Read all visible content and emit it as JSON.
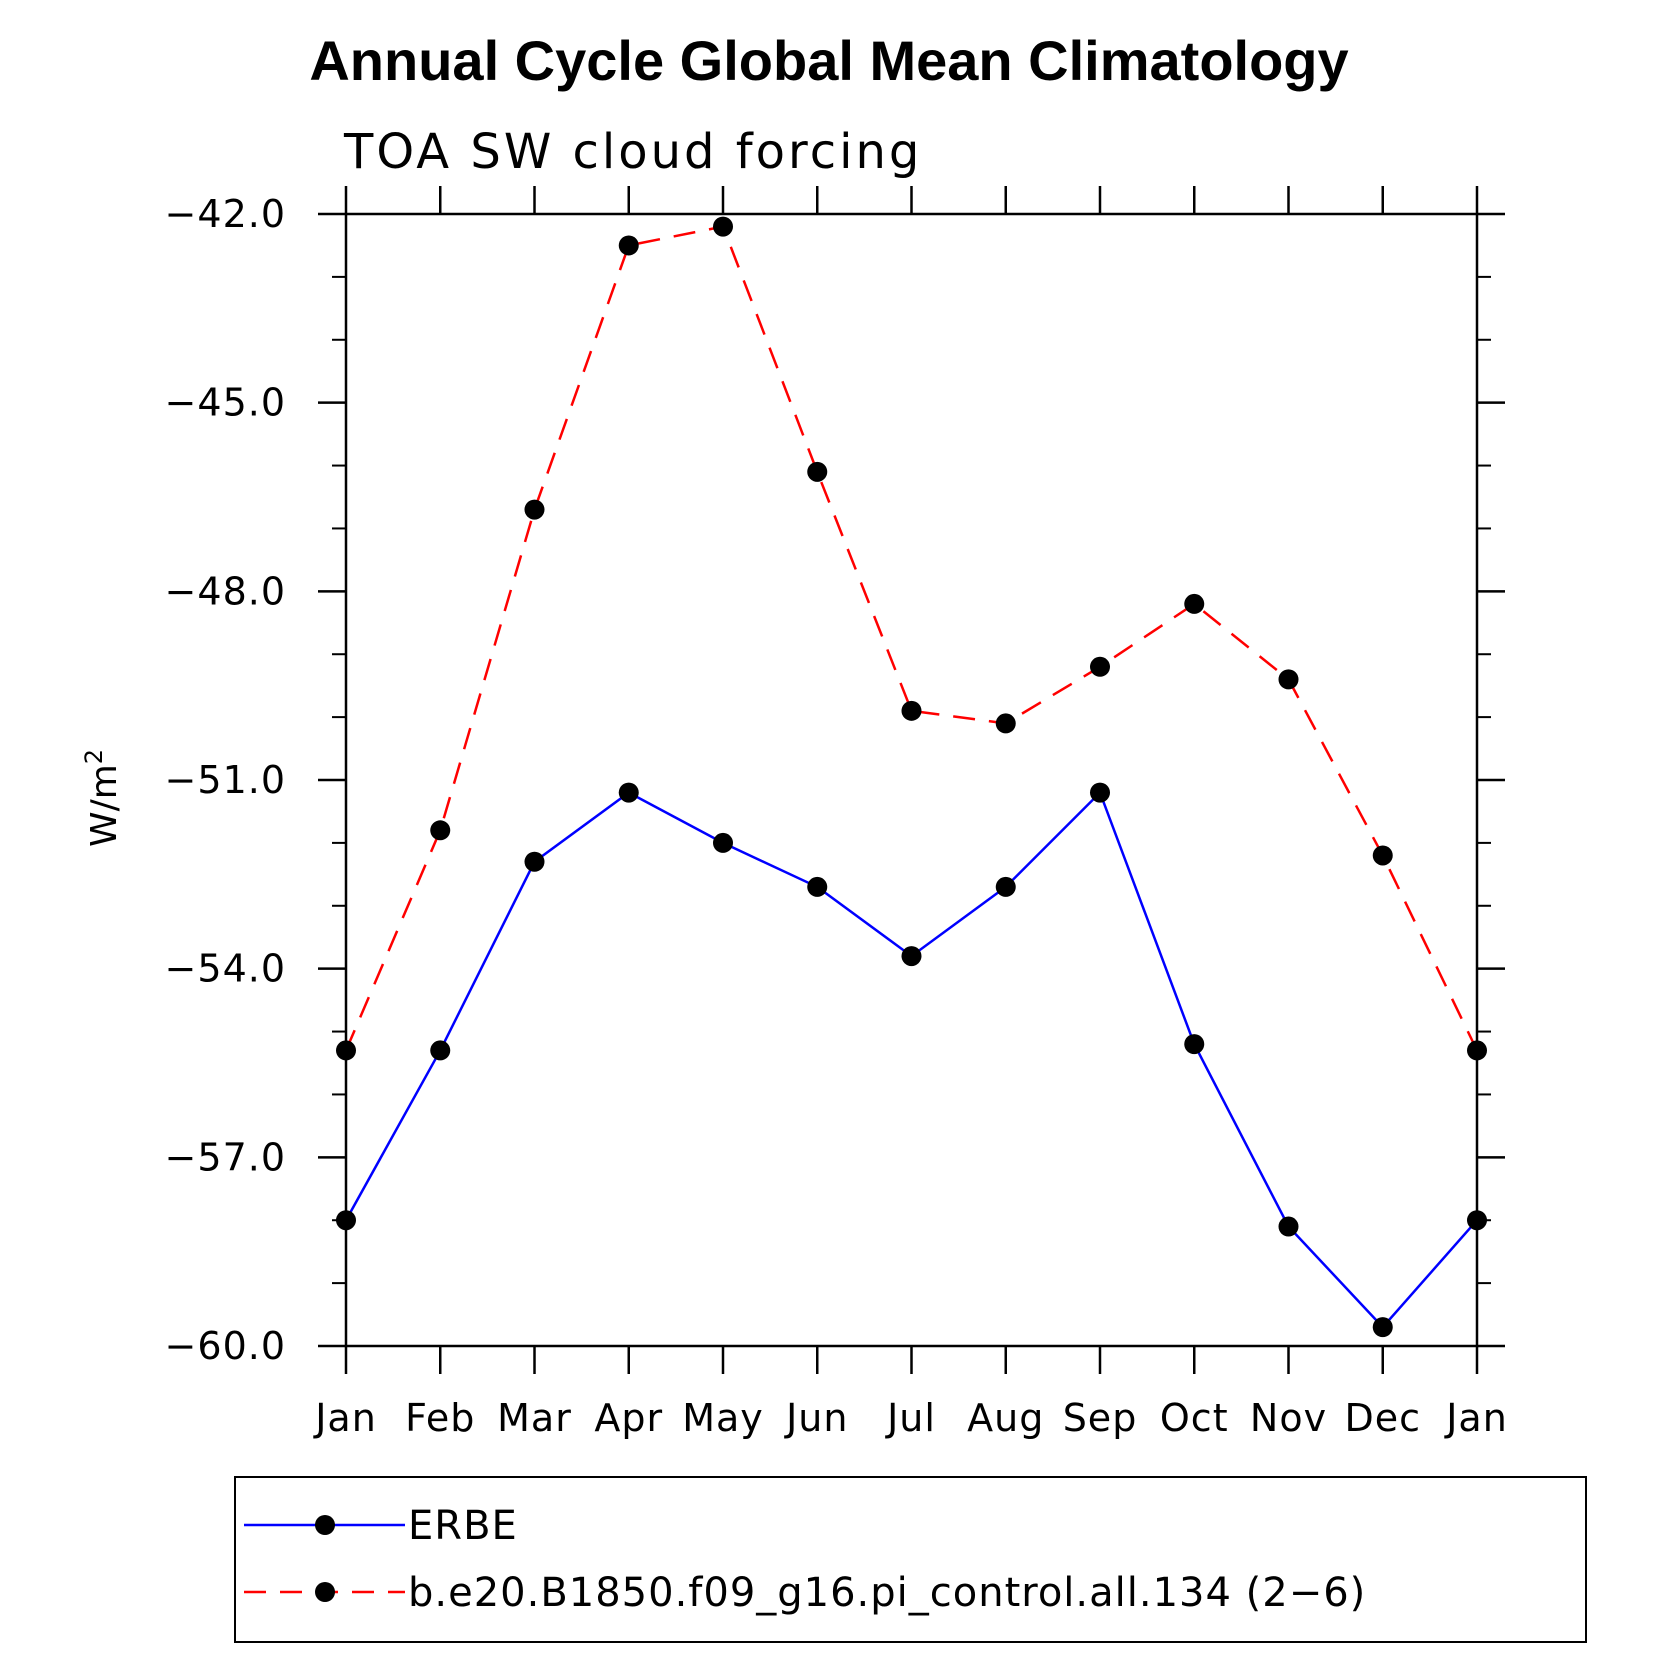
{
  "chart_data": {
    "type": "line",
    "title": "Annual Cycle Global Mean Climatology",
    "subtitle": "TOA SW cloud forcing",
    "xlabel": "",
    "ylabel": "W/m",
    "ylabel_superscript": "2",
    "categories": [
      "Jan",
      "Feb",
      "Mar",
      "Apr",
      "May",
      "Jun",
      "Jul",
      "Aug",
      "Sep",
      "Oct",
      "Nov",
      "Dec",
      "Jan"
    ],
    "ylim": [
      -60.0,
      -42.0
    ],
    "yticks": [
      -42.0,
      -45.0,
      -48.0,
      -51.0,
      -54.0,
      -57.0,
      -60.0
    ],
    "ytick_labels": [
      "−42.0",
      "−45.0",
      "−48.0",
      "−51.0",
      "−54.0",
      "−57.0",
      "−60.0"
    ],
    "y_minor_step": 1.0,
    "grid": false,
    "legend_position": "bottom",
    "series": [
      {
        "name": "ERBE",
        "color": "#0000ff",
        "dash": "solid",
        "marker": "filled-circle",
        "values": [
          -58.0,
          -55.3,
          -52.3,
          -51.2,
          -52.0,
          -52.7,
          -53.8,
          -52.7,
          -51.2,
          -55.2,
          -58.1,
          -59.7,
          -58.0
        ]
      },
      {
        "name": "b.e20.B1850.f09_g16.pi_control.all.134 (2−6)",
        "color": "#ff0000",
        "dash": "dashed",
        "marker": "filled-circle",
        "values": [
          -55.3,
          -51.8,
          -46.7,
          -42.5,
          -42.2,
          -46.1,
          -49.9,
          -50.1,
          -49.2,
          -48.2,
          -49.4,
          -52.2,
          -55.3
        ]
      }
    ]
  }
}
